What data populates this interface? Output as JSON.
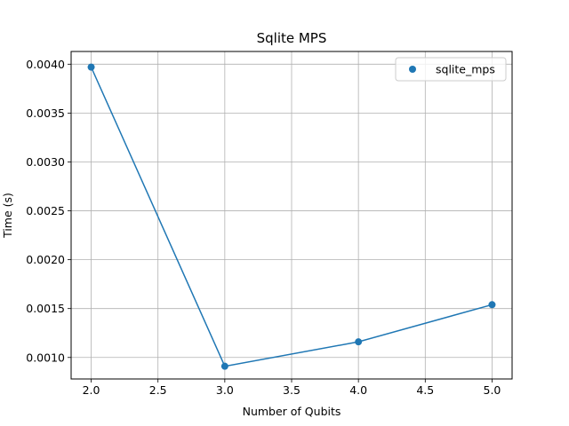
{
  "chart_data": {
    "type": "line",
    "title": "Sqlite MPS",
    "xlabel": "Number of Qubits",
    "ylabel": "Time (s)",
    "xlim": [
      1.85,
      5.15
    ],
    "ylim": [
      0.00078,
      0.00413
    ],
    "xticks": [
      2.0,
      2.5,
      3.0,
      3.5,
      4.0,
      4.5,
      5.0
    ],
    "xtick_labels": [
      "2.0",
      "2.5",
      "3.0",
      "3.5",
      "4.0",
      "4.5",
      "5.0"
    ],
    "yticks": [
      0.001,
      0.0015,
      0.002,
      0.0025,
      0.003,
      0.0035,
      0.004
    ],
    "ytick_labels": [
      "0.0010",
      "0.0015",
      "0.0020",
      "0.0025",
      "0.0030",
      "0.0035",
      "0.0040"
    ],
    "grid": true,
    "legend_position": "top-right",
    "series": [
      {
        "name": "sqlite_mps",
        "color": "#1f77b4",
        "marker": "circle",
        "x": [
          2,
          3,
          4,
          5
        ],
        "y": [
          0.00397,
          0.00091,
          0.00116,
          0.00154
        ]
      }
    ]
  }
}
